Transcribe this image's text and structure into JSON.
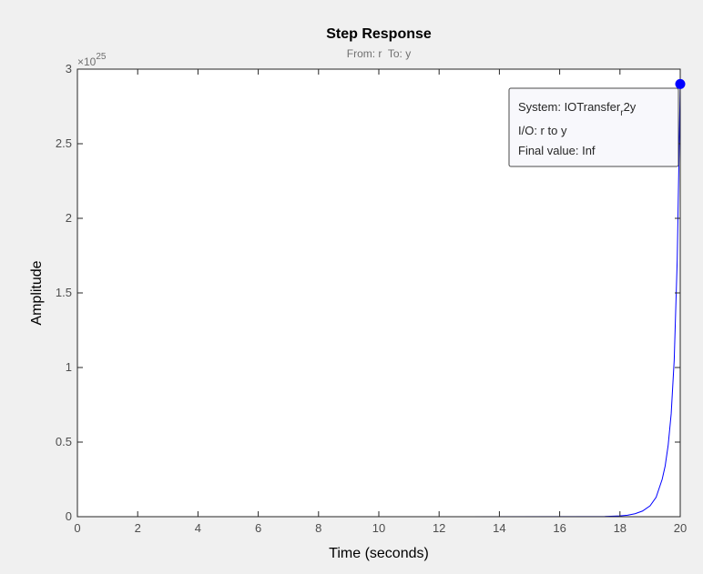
{
  "chart_data": {
    "type": "line",
    "title": "Step Response",
    "subtitle": "From: r  To: y",
    "xlabel": "Time (seconds)",
    "ylabel": "Amplitude",
    "xlim": [
      0,
      20
    ],
    "ylim": [
      0,
      3
    ],
    "y_exponent_label": "×10",
    "y_exponent_power": "25",
    "x_ticks": [
      0,
      2,
      4,
      6,
      8,
      10,
      12,
      14,
      16,
      18,
      20
    ],
    "x_tick_labels": [
      "0",
      "2",
      "4",
      "6",
      "8",
      "10",
      "12",
      "14",
      "16",
      "18",
      "20"
    ],
    "y_ticks": [
      0,
      0.5,
      1,
      1.5,
      2,
      2.5,
      3
    ],
    "y_tick_labels": [
      "0",
      "0.5",
      "1",
      "1.5",
      "2",
      "2.5",
      "3"
    ],
    "grid": false,
    "series": [
      {
        "color": "#0000ff",
        "x": [
          0,
          10,
          17,
          17.5,
          18,
          18.25,
          18.5,
          18.75,
          19,
          19.2,
          19.4,
          19.5,
          19.6,
          19.7,
          19.8,
          19.9,
          20
        ],
        "y": [
          0,
          0,
          0.0004,
          0.0014,
          0.005,
          0.01,
          0.02,
          0.038,
          0.073,
          0.13,
          0.25,
          0.34,
          0.48,
          0.69,
          1.05,
          1.72,
          2.9
        ]
      }
    ],
    "datatip": {
      "x": 20,
      "y": 2.9,
      "line1_prefix": "System: IOTransfer",
      "line1_sub": "r",
      "line1_suffix": "2y",
      "line2": "I/O: r to y",
      "line3": "Final value: Inf"
    }
  }
}
